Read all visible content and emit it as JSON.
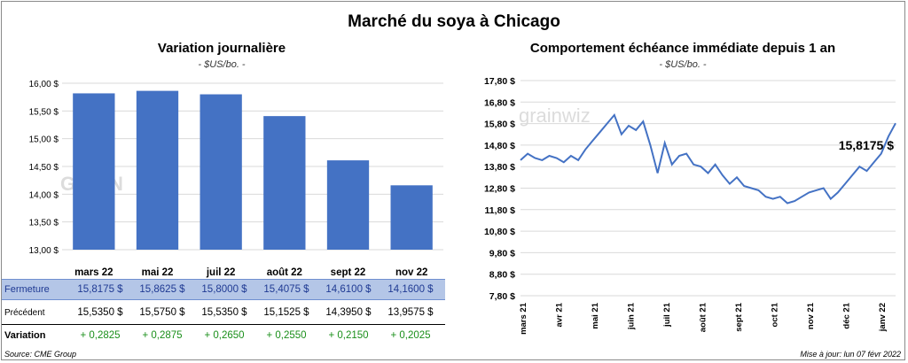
{
  "main_title": "Marché du soya à Chicago",
  "left_panel": {
    "title": "Variation  journalière",
    "unit": "- $US/bo. -",
    "watermark": "GRAIN"
  },
  "right_panel": {
    "title": "Comportement  échéance immédiate depuis 1 an",
    "unit": "- $US/bo. -",
    "watermark": "grainwiz",
    "last_value_label": "15,8175 $"
  },
  "table": {
    "rows": [
      {
        "label": "Fermeture",
        "values": [
          "15,8175  $",
          "15,8625  $",
          "15,8000  $",
          "15,4075  $",
          "14,6100  $",
          "14,1600  $"
        ]
      },
      {
        "label": "Précédent",
        "values": [
          "15,5350  $",
          "15,5750  $",
          "15,5350  $",
          "15,1525  $",
          "14,3950  $",
          "13,9575  $"
        ]
      },
      {
        "label": "Variation",
        "values": [
          "+ 0,2825",
          "+ 0,2875",
          "+ 0,2650",
          "+ 0,2550",
          "+ 0,2150",
          "+ 0,2025"
        ]
      }
    ]
  },
  "footer": {
    "source": "Source: CME Group",
    "updated": "Mise à jour: lun 07 févr 2022"
  },
  "colors": {
    "bar": "#4472c4",
    "line": "#4472c4",
    "fermeture_row": "#b4c6e7",
    "variation_text": "#1a8f1a",
    "grid": "#d9d9d9"
  },
  "chart_data": [
    {
      "type": "bar",
      "title": "Variation  journalière",
      "ylabel": "- $US/bo. -",
      "categories": [
        "mars 22",
        "mai 22",
        "juil 22",
        "août 22",
        "sept 22",
        "nov 22"
      ],
      "values": [
        15.8175,
        15.8625,
        15.8,
        15.4075,
        14.61,
        14.16
      ],
      "ylim": [
        13.0,
        16.0
      ],
      "yticks": [
        13.0,
        13.5,
        14.0,
        14.5,
        15.0,
        15.5,
        16.0
      ],
      "ytick_labels": [
        "13,00 $",
        "13,50 $",
        "14,00 $",
        "14,50 $",
        "15,00 $",
        "15,50 $",
        "16,00 $"
      ],
      "grid": true
    },
    {
      "type": "line",
      "title": "Comportement  échéance immédiate depuis 1 an",
      "ylabel": "- $US/bo. -",
      "ylim": [
        7.8,
        17.8
      ],
      "yticks": [
        7.8,
        8.8,
        9.8,
        10.8,
        11.8,
        12.8,
        13.8,
        14.8,
        15.8,
        16.8,
        17.8
      ],
      "ytick_labels": [
        "7,80 $",
        "8,80 $",
        "9,80 $",
        "10,80 $",
        "11,80 $",
        "12,80 $",
        "13,80 $",
        "14,80 $",
        "15,80 $",
        "16,80 $",
        "17,80 $"
      ],
      "xtick_labels": [
        "mars 21",
        "avr 21",
        "mai 21",
        "juin 21",
        "juil 21",
        "août 21",
        "sept 21",
        "oct 21",
        "nov 21",
        "déc 21",
        "janv 22"
      ],
      "x": [
        "2021-02-08",
        "2021-02-15",
        "2021-02-22",
        "2021-03-01",
        "2021-03-08",
        "2021-03-15",
        "2021-03-22",
        "2021-03-29",
        "2021-04-05",
        "2021-04-12",
        "2021-04-19",
        "2021-04-26",
        "2021-05-03",
        "2021-05-10",
        "2021-05-17",
        "2021-05-24",
        "2021-05-31",
        "2021-06-07",
        "2021-06-14",
        "2021-06-21",
        "2021-06-28",
        "2021-07-05",
        "2021-07-12",
        "2021-07-19",
        "2021-07-26",
        "2021-08-02",
        "2021-08-09",
        "2021-08-16",
        "2021-08-23",
        "2021-08-30",
        "2021-09-06",
        "2021-09-13",
        "2021-09-20",
        "2021-09-27",
        "2021-10-04",
        "2021-10-11",
        "2021-10-18",
        "2021-10-25",
        "2021-11-01",
        "2021-11-08",
        "2021-11-15",
        "2021-11-22",
        "2021-11-29",
        "2021-12-06",
        "2021-12-13",
        "2021-12-20",
        "2021-12-27",
        "2022-01-03",
        "2022-01-10",
        "2022-01-17",
        "2022-01-24",
        "2022-01-31",
        "2022-02-07"
      ],
      "values": [
        14.1,
        14.4,
        14.2,
        14.1,
        14.3,
        14.2,
        14.0,
        14.3,
        14.1,
        14.6,
        15.0,
        15.4,
        15.8,
        16.2,
        15.3,
        15.7,
        15.5,
        15.9,
        14.8,
        13.5,
        14.9,
        13.9,
        14.3,
        14.4,
        13.9,
        13.8,
        13.5,
        13.9,
        13.4,
        13.0,
        13.3,
        12.9,
        12.8,
        12.7,
        12.4,
        12.3,
        12.4,
        12.1,
        12.2,
        12.4,
        12.6,
        12.7,
        12.8,
        12.3,
        12.6,
        13.0,
        13.4,
        13.8,
        13.6,
        14.0,
        14.4,
        15.2,
        15.8175
      ]
    }
  ]
}
